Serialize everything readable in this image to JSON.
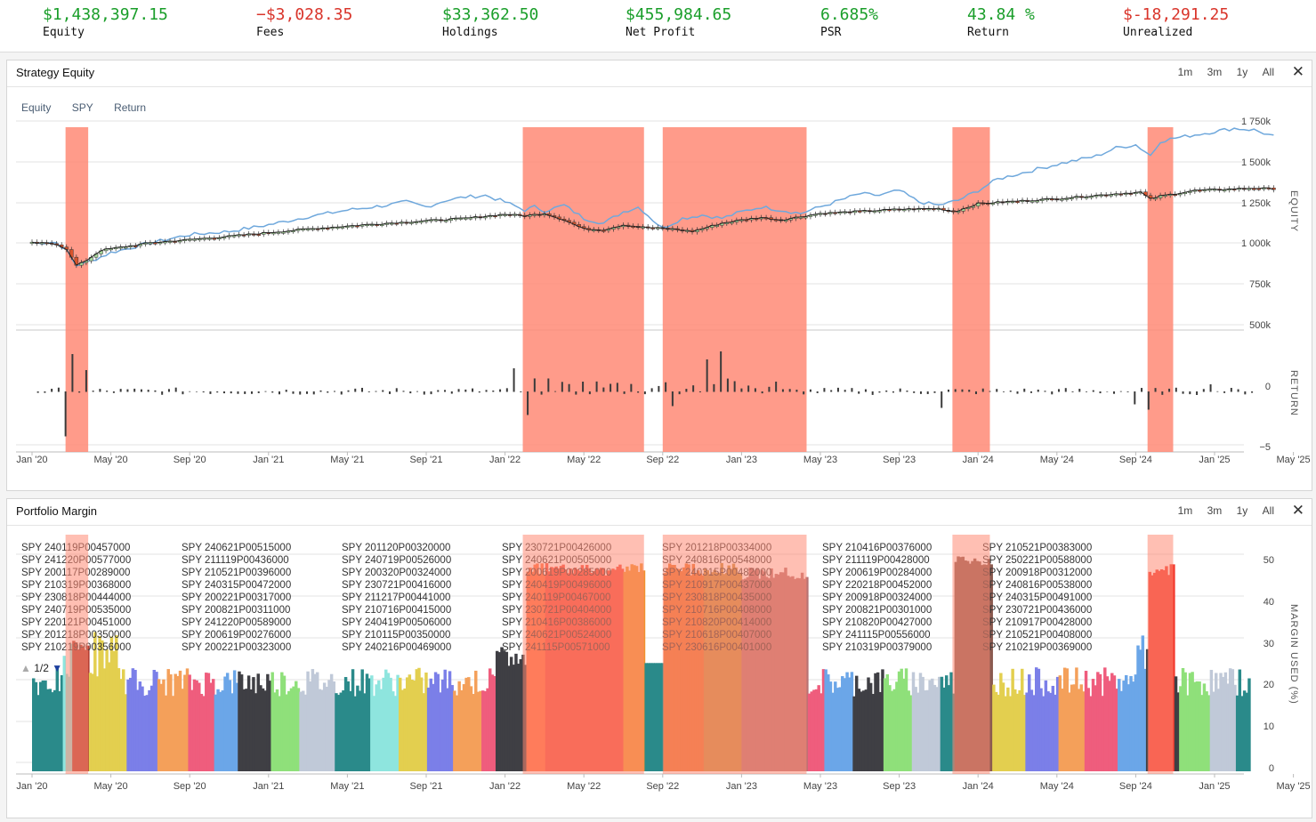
{
  "stats": [
    {
      "value": "$1,438,397.15",
      "label": "Equity",
      "tone": "pos"
    },
    {
      "value": "−$3,028.35",
      "label": "Fees",
      "tone": "neg"
    },
    {
      "value": "$33,362.50",
      "label": "Holdings",
      "tone": "pos"
    },
    {
      "value": "$455,984.65",
      "label": "Net Profit",
      "tone": "pos"
    },
    {
      "value": "6.685%",
      "label": "PSR",
      "tone": "pos"
    },
    {
      "value": "43.84 %",
      "label": "Return",
      "tone": "pos"
    },
    {
      "value": "$-18,291.25",
      "label": "Unrealized",
      "tone": "neg"
    }
  ],
  "ranges": [
    "1m",
    "3m",
    "1y",
    "All"
  ],
  "close_glyph": "✕",
  "equity_panel": {
    "title": "Strategy Equity",
    "legend": [
      "Equity",
      "SPY",
      "Return"
    ],
    "equity_axis_label": "EQUITY",
    "return_axis_label": "RETURN",
    "y_ticks": [
      "1 750k",
      "1 500k",
      "1 250k",
      "1 000k",
      "750k",
      "500k"
    ],
    "return_ticks": [
      "0",
      "−5"
    ]
  },
  "margin_panel": {
    "title": "Portfolio Margin",
    "axis_label": "MARGIN USED (%)",
    "y_ticks": [
      "50",
      "40",
      "30",
      "20",
      "10",
      "0"
    ],
    "page_indicator": "1/2",
    "columns": [
      [
        "SPY 240119P00457000",
        "SPY 241220P00577000",
        "SPY 200117P00289000",
        "SPY 210319P00368000",
        "SPY 230818P00444000",
        "SPY 240719P00535000",
        "SPY 220121P00451000",
        "SPY 201218P00350000",
        "SPY 210219P00356000"
      ],
      [
        "SPY 240621P00515000",
        "SPY 211119P00436000",
        "SPY 210521P00396000",
        "SPY 240315P00472000",
        "SPY 200221P00317000",
        "SPY 200821P00311000",
        "SPY 241220P00589000",
        "SPY 200619P00276000",
        "SPY 200221P00323000"
      ],
      [
        "SPY 201120P00320000",
        "SPY 240719P00526000",
        "SPY 200320P00324000",
        "SPY 230721P00416000",
        "SPY 211217P00441000",
        "SPY 210716P00415000",
        "SPY 240419P00506000",
        "SPY 210115P00350000",
        "SPY 240216P00469000"
      ],
      [
        "SPY 230721P00426000",
        "SPY 240621P00505000",
        "SPY 200619P00285000",
        "SPY 240419P00496000",
        "SPY 240119P00467000",
        "SPY 230721P00404000",
        "SPY 210416P00386000",
        "SPY 240621P00524000",
        "SPY 241115P00571000"
      ],
      [
        "SPY 201218P00334000",
        "SPY 240816P00548000",
        "SPY 240315P00482000",
        "SPY 210917P00437000",
        "SPY 230818P00435000",
        "SPY 210716P00408000",
        "SPY 210820P00414000",
        "SPY 210618P00407000",
        "SPY 230616P00401000"
      ],
      [
        "SPY 210416P00376000",
        "SPY 211119P00428000",
        "SPY 200619P00284000",
        "SPY 220218P00452000",
        "SPY 200918P00324000",
        "SPY 200821P00301000",
        "SPY 210820P00427000",
        "SPY 241115P00556000",
        "SPY 210319P00379000"
      ],
      [
        "SPY 210521P00383000",
        "SPY 250221P00588000",
        "SPY 200918P00312000",
        "SPY 240816P00538000",
        "SPY 240315P00491000",
        "SPY 230721P00436000",
        "SPY 210917P00428000",
        "SPY 210521P00408000",
        "SPY 210219P00369000"
      ]
    ]
  },
  "x_axis_labels": [
    "Jan '20",
    "May '20",
    "Sep '20",
    "Jan '21",
    "May '21",
    "Sep '21",
    "Jan '22",
    "May '22",
    "Sep '22",
    "Jan '23",
    "May '23",
    "Sep '23",
    "Jan '24",
    "May '24",
    "Sep '24",
    "Jan '25",
    "May '25"
  ],
  "colors": {
    "positive": "#1a9e2a",
    "negative": "#d9352b",
    "highlight": "#ff8a75",
    "spy": "#6fa8dc"
  }
}
